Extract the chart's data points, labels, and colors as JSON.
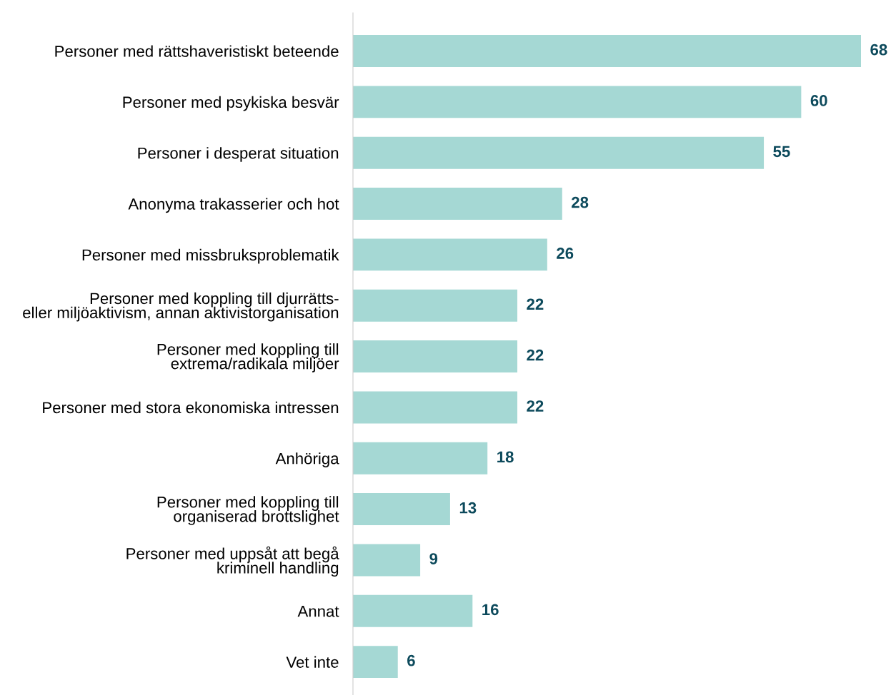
{
  "chart_data": {
    "type": "bar",
    "orientation": "horizontal",
    "data_labels": true,
    "grid": false,
    "legend": false,
    "categories": [
      "Personer med rättshaveristiskt beteende",
      "Personer med psykiska besvär",
      "Personer i desperat situation",
      "Anonyma trakasserier och hot",
      "Personer med missbruksproblematik",
      "Personer med koppling till djurrätts-\neller miljöaktivism, annan aktivistorganisation",
      "Personer med koppling till\nextrema/radikala miljöer",
      "Personer med stora ekonomiska intressen",
      "Anhöriga",
      "Personer med koppling till\norganiserad brottslighet",
      "Personer med uppsåt att begå\nkriminell handling",
      "Annat",
      "Vet inte"
    ],
    "values": [
      68,
      60,
      55,
      28,
      26,
      22,
      22,
      22,
      18,
      13,
      9,
      16,
      6
    ],
    "color": "#a5d8d4"
  }
}
